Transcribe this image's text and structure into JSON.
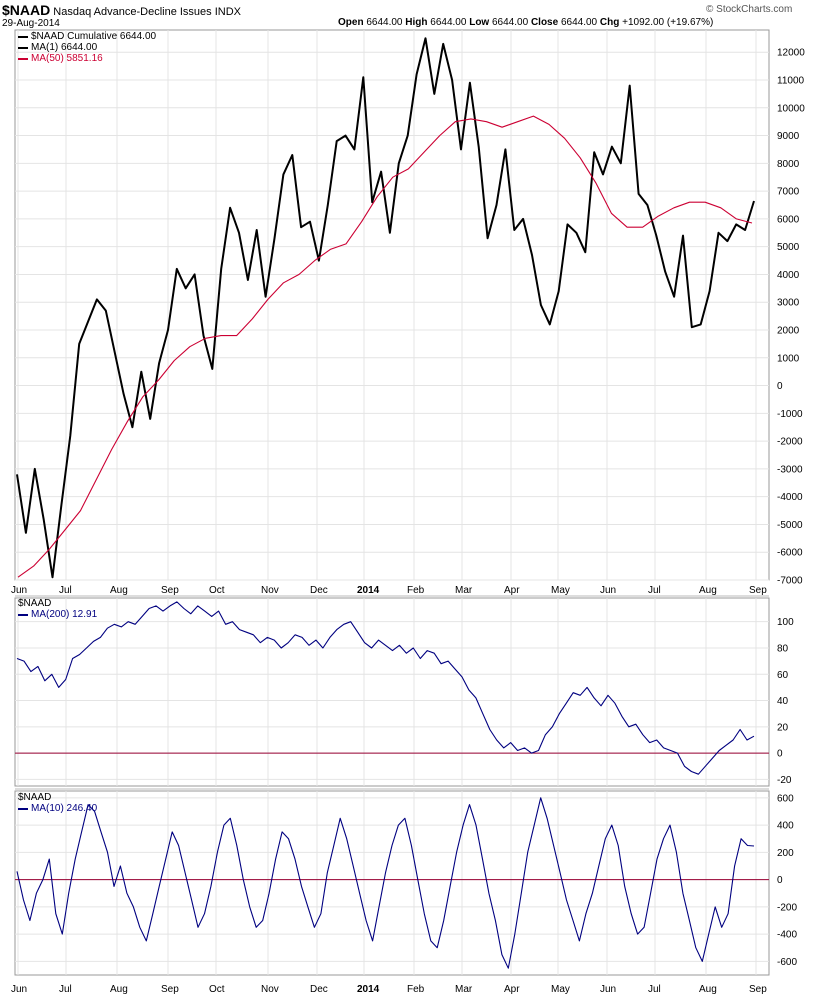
{
  "header": {
    "symbol": "$NAAD",
    "name": "Nasdaq Advance-Decline Issues",
    "exchange": "INDX",
    "date": "29-Aug-2014",
    "ohlc": {
      "open_label": "Open",
      "open": "6644.00",
      "high_label": "High",
      "high": "6644.00",
      "low_label": "Low",
      "low": "6644.00",
      "close_label": "Close",
      "close": "6644.00",
      "chg_label": "Chg",
      "chg": "+1092.00 (+19.67%)"
    },
    "watermark": "© StockCharts.com"
  },
  "x_axis": {
    "ticks": [
      "Jun",
      "Jul",
      "Aug",
      "Sep",
      "Oct",
      "Nov",
      "Dec",
      "2014",
      "Feb",
      "Mar",
      "Apr",
      "May",
      "Jun",
      "Jul",
      "Aug",
      "Sep"
    ]
  },
  "colors": {
    "line_black": "#000000",
    "ma50_red": "#cc0033",
    "navy": "#000080",
    "zero_line": "#990033",
    "grid": "#e4e4e4"
  },
  "chart_data": [
    {
      "type": "line",
      "panel": "price",
      "legend": [
        {
          "label": "$NAAD Cumulative 6644.00",
          "color": "#000000"
        },
        {
          "label": "MA(1) 6644.00",
          "color": "#000000"
        },
        {
          "label": "MA(50) 5851.16",
          "color": "#cc0033"
        }
      ],
      "ylim": [
        -7000,
        12800
      ],
      "yticks": [
        12000,
        11000,
        10000,
        9000,
        8000,
        7000,
        6000,
        5000,
        4000,
        3000,
        2000,
        1000,
        0,
        -1000,
        -2000,
        -3000,
        -4000,
        -5000,
        -6000,
        -7000
      ],
      "x_index_range": [
        0,
        64
      ],
      "series": [
        {
          "name": "$NAAD Cumulative",
          "color": "#000000",
          "values": [
            -3200,
            -5300,
            -3000,
            -4800,
            -6900,
            -4300,
            -1800,
            1500,
            2300,
            3100,
            2700,
            1200,
            -300,
            -1500,
            500,
            -1200,
            800,
            2000,
            4200,
            3500,
            4000,
            1800,
            600,
            4200,
            6400,
            5500,
            3800,
            5600,
            3200,
            5300,
            7600,
            8300,
            5700,
            5900,
            4500,
            6500,
            8800,
            9000,
            8500,
            11100,
            6600,
            7700,
            5500,
            8000,
            9000,
            11200,
            12500,
            10500,
            12300,
            11000,
            8500,
            10900,
            8600,
            5300,
            6500,
            8500,
            5600,
            6000,
            4700,
            2900,
            2200,
            3400,
            5800,
            5500,
            4800,
            8400,
            7600,
            8600,
            8000,
            10800,
            6900,
            6500,
            5400,
            4100,
            3200,
            5400,
            2100,
            2200,
            3400,
            5500,
            5200,
            5800,
            5600,
            6644
          ]
        },
        {
          "name": "MA(50)",
          "color": "#cc0033",
          "values": [
            -6900,
            -6500,
            -5900,
            -5200,
            -4500,
            -3400,
            -2300,
            -1300,
            -400,
            200,
            900,
            1400,
            1700,
            1800,
            1800,
            2400,
            3100,
            3700,
            4000,
            4500,
            4900,
            5100,
            5900,
            6800,
            7500,
            7800,
            8400,
            9000,
            9500,
            9600,
            9500,
            9300,
            9500,
            9700,
            9400,
            8900,
            8200,
            7300,
            6200,
            5700,
            5700,
            6100,
            6400,
            6600,
            6600,
            6400,
            6000,
            5851
          ]
        }
      ]
    },
    {
      "type": "line",
      "panel": "middle",
      "legend": [
        {
          "label": "$NAAD",
          "color": "#000000"
        },
        {
          "label": "MA(200) 12.91",
          "color": "#000080"
        }
      ],
      "ylim": [
        -25,
        118
      ],
      "yticks": [
        100,
        80,
        60,
        40,
        20,
        0,
        -20
      ],
      "series": [
        {
          "name": "MA(200)",
          "color": "#000080",
          "values": [
            72,
            70,
            62,
            66,
            55,
            60,
            50,
            56,
            72,
            75,
            80,
            85,
            88,
            95,
            98,
            96,
            100,
            98,
            104,
            110,
            112,
            108,
            112,
            115,
            110,
            106,
            112,
            108,
            104,
            108,
            98,
            100,
            94,
            92,
            90,
            84,
            88,
            86,
            80,
            84,
            90,
            88,
            82,
            86,
            80,
            88,
            94,
            98,
            100,
            92,
            84,
            80,
            86,
            82,
            78,
            82,
            76,
            80,
            72,
            78,
            76,
            68,
            70,
            64,
            58,
            48,
            42,
            30,
            18,
            10,
            4,
            8,
            2,
            4,
            0,
            2,
            14,
            20,
            30,
            38,
            46,
            44,
            50,
            42,
            36,
            44,
            38,
            28,
            20,
            22,
            14,
            8,
            10,
            4,
            2,
            0,
            -10,
            -14,
            -16,
            -10,
            -4,
            2,
            6,
            10,
            18,
            10,
            12.91
          ]
        }
      ]
    },
    {
      "type": "line",
      "panel": "bottom",
      "legend": [
        {
          "label": "$NAAD",
          "color": "#000000"
        },
        {
          "label": "MA(10) 246.40",
          "color": "#000080"
        }
      ],
      "ylim": [
        -700,
        650
      ],
      "yticks": [
        600,
        400,
        200,
        0,
        -200,
        -400,
        -600
      ],
      "series": [
        {
          "name": "MA(10)",
          "color": "#000080",
          "values": [
            60,
            -150,
            -300,
            -100,
            0,
            150,
            -250,
            -400,
            -100,
            150,
            350,
            550,
            500,
            350,
            200,
            -50,
            100,
            -100,
            -200,
            -350,
            -450,
            -250,
            -50,
            150,
            350,
            250,
            50,
            -150,
            -350,
            -250,
            -50,
            200,
            400,
            450,
            250,
            0,
            -200,
            -350,
            -300,
            -100,
            150,
            350,
            300,
            150,
            -50,
            -200,
            -350,
            -250,
            50,
            250,
            450,
            300,
            100,
            -100,
            -300,
            -450,
            -200,
            50,
            250,
            400,
            450,
            250,
            0,
            -250,
            -450,
            -500,
            -300,
            -50,
            200,
            400,
            550,
            400,
            150,
            -100,
            -300,
            -550,
            -650,
            -400,
            -100,
            200,
            400,
            600,
            450,
            250,
            50,
            -150,
            -300,
            -450,
            -250,
            -100,
            100,
            300,
            400,
            250,
            -50,
            -250,
            -400,
            -350,
            -100,
            150,
            300,
            400,
            200,
            -100,
            -300,
            -500,
            -600,
            -400,
            -200,
            -350,
            -250,
            100,
            300,
            250,
            246.4
          ]
        }
      ]
    }
  ]
}
